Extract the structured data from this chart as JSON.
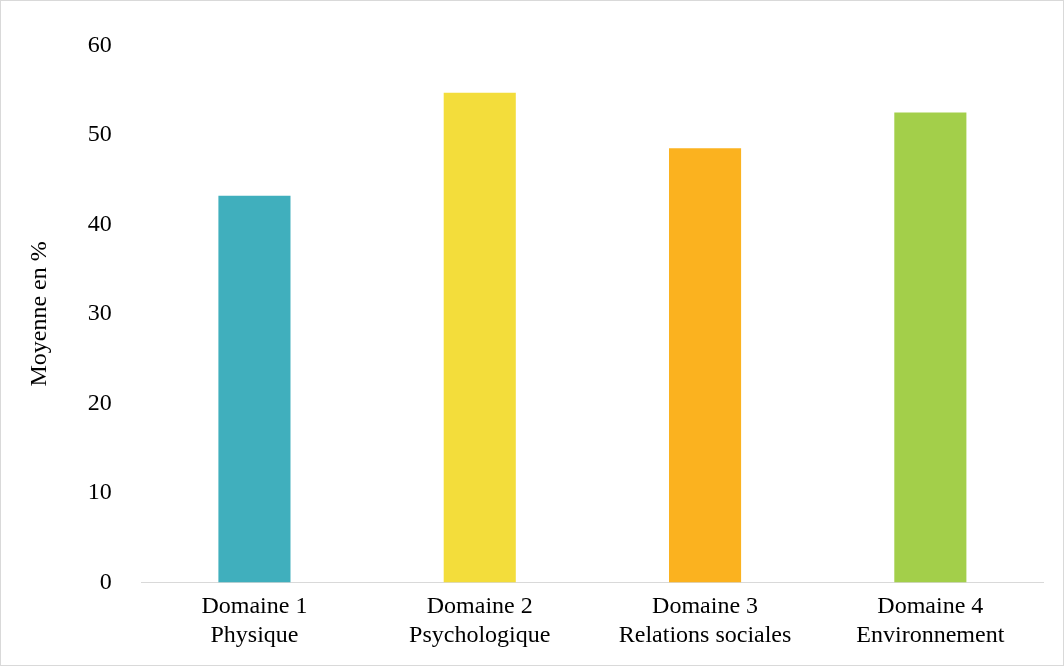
{
  "chart_data": {
    "type": "bar",
    "ylabel": "Moyenne en %",
    "categories": [
      "Domaine 1\nPhysique",
      "Domaine 2\nPsychologique",
      "Domaine 3\nRelations sociales",
      "Domaine 4\nEnvironnement"
    ],
    "values": [
      43.2,
      54.7,
      48.5,
      52.5
    ],
    "colors": [
      "#40afbd",
      "#f3dd3b",
      "#fbb21f",
      "#a3cf4a"
    ],
    "ylim": [
      0,
      60
    ],
    "yticks": [
      0,
      10,
      20,
      30,
      40,
      50,
      60
    ],
    "grid": false,
    "legend": false
  }
}
